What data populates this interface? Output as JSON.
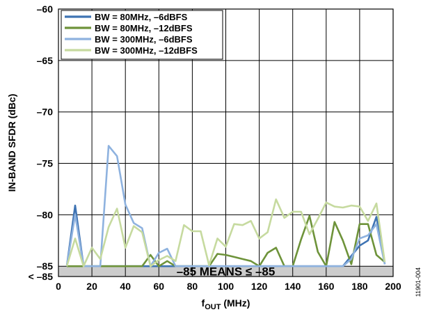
{
  "figure_id": "11901-004",
  "colors": {
    "bw80_6": "#3e73b3",
    "bw80_12": "#6e933a",
    "bw300_6": "#8eb2df",
    "bw300_12": "#c6da9f",
    "floor_region": "#cccccc",
    "grid": "#000000"
  },
  "chart_data": {
    "type": "line",
    "xlabel": {
      "main": "f",
      "sub": "OUT",
      "unit": " (MHz)"
    },
    "ylabel": "IN-BAND SFDR (dBc)",
    "xlim": [
      0,
      200
    ],
    "ylim": [
      -86,
      -60
    ],
    "x_ticks": [
      0,
      20,
      40,
      60,
      80,
      100,
      120,
      140,
      160,
      180,
      200
    ],
    "x_tick_labels": [
      "0",
      "20",
      "40",
      "60",
      "80",
      "100",
      "120",
      "140",
      "160",
      "180",
      "200"
    ],
    "y_ticks": [
      -85,
      -80,
      -75,
      -70,
      -65,
      -60
    ],
    "y_tick_labels": [
      "–85",
      "–80",
      "–75",
      "–70",
      "–65",
      "–60"
    ],
    "y_bottom_label": "< –85",
    "y_bottom_value": -86,
    "grid": true,
    "legend_position": "top-left",
    "shaded_region": {
      "y_from": -86,
      "y_to": -85,
      "label": "–85 MEANS ≤ –85"
    },
    "series": [
      {
        "name": "BW = 80MHz, –6dBFS",
        "color_key": "bw80_6",
        "x": [
          5,
          10,
          15,
          20,
          25,
          30,
          35,
          40,
          45,
          50,
          55,
          60,
          65,
          70,
          75,
          80,
          85,
          90,
          95,
          100,
          105,
          110,
          115,
          120,
          125,
          130,
          135,
          140,
          145,
          150,
          155,
          160,
          165,
          170,
          175,
          180,
          185,
          190,
          195
        ],
        "values": [
          -85,
          -79.1,
          -85,
          -85,
          -85,
          -85,
          -85,
          -85,
          -85,
          -85,
          -85,
          -85,
          -85,
          -85,
          -85,
          -85,
          -85,
          -85,
          -85,
          -85,
          -85,
          -85,
          -85,
          -85,
          -85,
          -85,
          -85,
          -85,
          -85,
          -85,
          -85,
          -85,
          -85,
          -85,
          -84,
          -83,
          -82.5,
          -80.2,
          -84.8
        ]
      },
      {
        "name": "BW = 80MHz, –12dBFS",
        "color_key": "bw80_12",
        "x": [
          5,
          10,
          15,
          20,
          25,
          30,
          35,
          40,
          45,
          50,
          55,
          60,
          65,
          70,
          75,
          80,
          85,
          90,
          95,
          100,
          105,
          110,
          115,
          120,
          125,
          130,
          135,
          140,
          145,
          150,
          155,
          160,
          165,
          170,
          175,
          180,
          185,
          190,
          195
        ],
        "values": [
          -85,
          -85,
          -85,
          -85,
          -85,
          -85,
          -85,
          -85,
          -85,
          -85,
          -83.9,
          -85,
          -84.5,
          -85,
          -85,
          -85,
          -85,
          -85,
          -83.8,
          -83.9,
          -84.1,
          -84.3,
          -84.5,
          -85,
          -83.7,
          -83.2,
          -85,
          -85,
          -82.4,
          -80.1,
          -83.6,
          -85,
          -80.7,
          -82.5,
          -84.8,
          -80.9,
          -80.9,
          -83.9,
          -84.6
        ]
      },
      {
        "name": "BW = 300MHz, –6dBFS",
        "color_key": "bw300_6",
        "x": [
          5,
          10,
          15,
          20,
          25,
          30,
          35,
          40,
          45,
          50,
          55,
          60,
          65,
          70,
          75,
          80,
          85,
          90,
          95,
          100,
          105,
          110,
          115,
          120,
          125,
          130,
          135,
          140,
          145,
          150,
          155,
          160,
          165,
          170,
          175,
          180,
          185,
          190,
          195
        ],
        "values": [
          -85,
          -80,
          -85,
          -85,
          -85,
          -73.3,
          -74.3,
          -79,
          -80.8,
          -81.3,
          -85,
          -83.7,
          -83.3,
          -85,
          -85,
          -85,
          -85,
          -85,
          -85,
          -85,
          -85,
          -85,
          -85,
          -85,
          -85,
          -85,
          -85,
          -85,
          -85,
          -85,
          -85,
          -85,
          -85,
          -85,
          -84.3,
          -82.3,
          -82,
          -80.9,
          -84.8
        ]
      },
      {
        "name": "BW = 300MHz, –12dBFS",
        "color_key": "bw300_12",
        "x": [
          5,
          10,
          15,
          20,
          25,
          30,
          35,
          40,
          45,
          50,
          55,
          60,
          65,
          70,
          75,
          80,
          85,
          90,
          95,
          100,
          105,
          110,
          115,
          120,
          125,
          130,
          135,
          140,
          145,
          150,
          155,
          160,
          165,
          170,
          175,
          180,
          185,
          190,
          195
        ],
        "values": [
          -85,
          -82.3,
          -85,
          -83.2,
          -84.3,
          -81.2,
          -79.4,
          -83.2,
          -81.1,
          -81.7,
          -85,
          -84.4,
          -84,
          -84.5,
          -81,
          -81.6,
          -81.6,
          -84.9,
          -82.3,
          -83.1,
          -80.9,
          -81,
          -80.6,
          -82.3,
          -81.7,
          -78.5,
          -80.3,
          -79.7,
          -79.7,
          -81.9,
          -80.4,
          -78.8,
          -79.2,
          -79.3,
          -79.1,
          -79.2,
          -80.6,
          -78.9,
          -84.6
        ]
      }
    ]
  }
}
